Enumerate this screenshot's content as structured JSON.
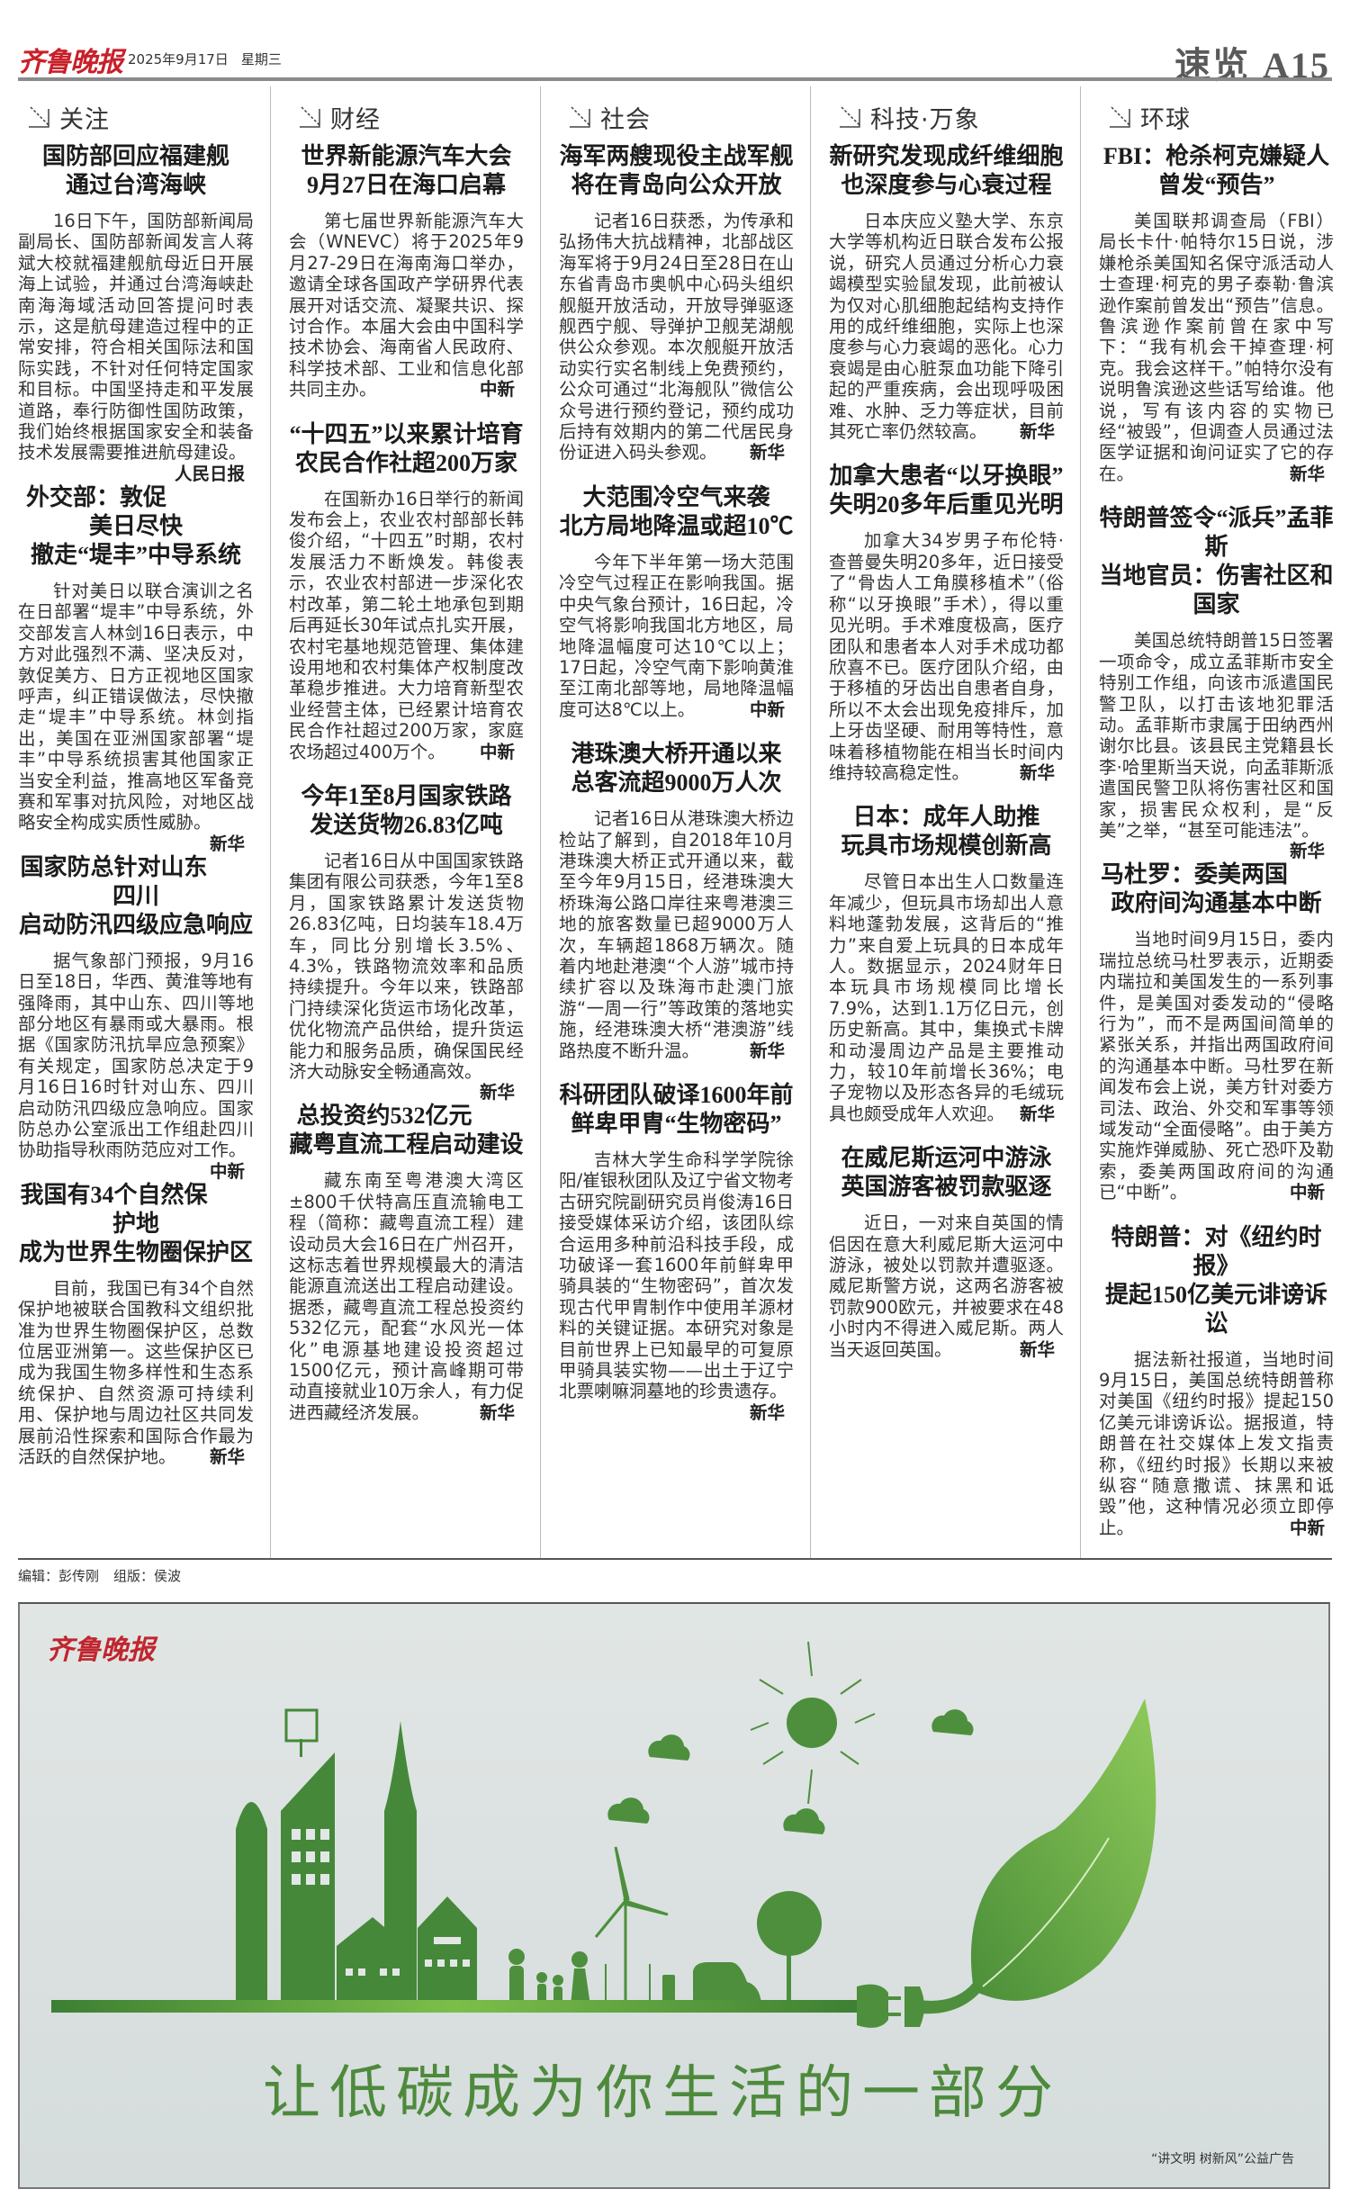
{
  "header": {
    "logo": "齐鲁晚报",
    "date": "2025年9月17日",
    "weekday": "星期三",
    "section": "速览",
    "page": "A15",
    "brand_color": "#c8202a"
  },
  "columns": [
    {
      "section": "关注",
      "articles": [
        {
          "title": [
            "国防部回应福建舰",
            "通过台湾海峡"
          ],
          "body": "16日下午，国防部新闻局副局长、国防部新闻发言人蒋斌大校就福建舰航母近日开展海上试验，并通过台湾海峡赴南海海域活动回答提问时表示，这是航母建造过程中的正常安排，符合相关国际法和国际实践，不针对任何特定国家和目标。中国坚持走和平发展道路，奉行防御性国防政策，我们始终根据国家安全和装备技术发展需要推进航母建设。",
          "source": "人民日报"
        },
        {
          "title": [
            "外交部：敦促美日尽快",
            "撤走“堤丰”中导系统"
          ],
          "body": "针对美日以联合演训之名在日部署“堤丰”中导系统，外交部发言人林剑16日表示，中方对此强烈不满、坚决反对，敦促美方、日方正视地区国家呼声，纠正错误做法，尽快撤走“堤丰”中导系统。林剑指出，美国在亚洲国家部署“堤丰”中导系统损害其他国家正当安全利益，推高地区军备竞赛和军事对抗风险，对地区战略安全构成实质性威胁。",
          "source": "新华"
        },
        {
          "title": [
            "国家防总针对山东四川",
            "启动防汛四级应急响应"
          ],
          "body": "据气象部门预报，9月16日至18日，华西、黄淮等地有强降雨，其中山东、四川等地部分地区有暴雨或大暴雨。根据《国家防汛抗旱应急预案》有关规定，国家防总决定于9月16日16时针对山东、四川启动防汛四级应急响应。国家防总办公室派出工作组赴四川协助指导秋雨防范应对工作。",
          "source": "中新"
        },
        {
          "title": [
            "我国有34个自然保护地",
            "成为世界生物圈保护区"
          ],
          "body": "目前，我国已有34个自然保护地被联合国教科文组织批准为世界生物圈保护区，总数位居亚洲第一。这些保护区已成为我国生物多样性和生态系统保护、自然资源可持续利用、保护地与周边社区共同发展前沿性探索和国际合作最为活跃的自然保护地。",
          "source": "新华"
        }
      ]
    },
    {
      "section": "财经",
      "articles": [
        {
          "title": [
            "世界新能源汽车大会",
            "9月27日在海口启幕"
          ],
          "body": "第七届世界新能源汽车大会（WNEVC）将于2025年9月27-29日在海南海口举办，邀请全球各国政产学研界代表展开对话交流、凝聚共识、探讨合作。本届大会由中国科学技术协会、海南省人民政府、科学技术部、工业和信息化部共同主办。",
          "source": "中新"
        },
        {
          "title": [
            "“十四五”以来累计培育",
            "农民合作社超200万家"
          ],
          "body": "在国新办16日举行的新闻发布会上，农业农村部部长韩俊介绍，“十四五”时期，农村发展活力不断焕发。韩俊表示，农业农村部进一步深化农村改革，第二轮土地承包到期后再延长30年试点扎实开展，农村宅基地规范管理、集体建设用地和农村集体产权制度改革稳步推进。大力培育新型农业经营主体，已经累计培育农民合作社超过200万家，家庭农场超过400万个。",
          "source": "中新"
        },
        {
          "title": [
            "今年1至8月国家铁路",
            "发送货物26.83亿吨"
          ],
          "body": "记者16日从中国国家铁路集团有限公司获悉，今年1至8月，国家铁路累计发送货物26.83亿吨，日均装车18.4万车，同比分别增长3.5%、4.3%，铁路物流效率和品质持续提升。今年以来，铁路部门持续深化货运市场化改革，优化物流产品供给，提升货运能力和服务品质，确保国民经济大动脉安全畅通高效。",
          "source": "新华"
        },
        {
          "title": [
            "总投资约532亿元",
            "藏粤直流工程启动建设"
          ],
          "body": "藏东南至粤港澳大湾区±800千伏特高压直流输电工程（简称：藏粤直流工程）建设动员大会16日在广州召开，这标志着世界规模最大的清洁能源直流送出工程启动建设。据悉，藏粤直流工程总投资约532亿元，配套“水风光一体化”电源基地建设投资超过1500亿元，预计高峰期可带动直接就业10万余人，有力促进西藏经济发展。",
          "source": "新华"
        }
      ]
    },
    {
      "section": "社会",
      "articles": [
        {
          "title": [
            "海军两艘现役主战军舰",
            "将在青岛向公众开放"
          ],
          "body": "记者16日获悉，为传承和弘扬伟大抗战精神，北部战区海军将于9月24日至28日在山东省青岛市奥帆中心码头组织舰艇开放活动，开放导弹驱逐舰西宁舰、导弹护卫舰芜湖舰供公众参观。本次舰艇开放活动实行实名制线上免费预约，公众可通过“北海舰队”微信公众号进行预约登记，预约成功后持有效期内的第二代居民身份证进入码头参观。",
          "source": "新华"
        },
        {
          "title": [
            "大范围冷空气来袭",
            "北方局地降温或超10℃"
          ],
          "body": "今年下半年第一场大范围冷空气过程正在影响我国。据中央气象台预计，16日起，冷空气将影响我国北方地区，局地降温幅度可达10℃以上；17日起，冷空气南下影响黄淮至江南北部等地，局地降温幅度可达8℃以上。",
          "source": "中新"
        },
        {
          "title": [
            "港珠澳大桥开通以来",
            "总客流超9000万人次"
          ],
          "body": "记者16日从港珠澳大桥边检站了解到，自2018年10月港珠澳大桥正式开通以来，截至今年9月15日，经港珠澳大桥珠海公路口岸往来粤港澳三地的旅客数量已超9000万人次，车辆超1868万辆次。随着内地赴港澳“个人游”城市持续扩容以及珠海市赴澳门旅游“一周一行”等政策的落地实施，经港珠澳大桥“港澳游”线路热度不断升温。",
          "source": "新华"
        },
        {
          "title": [
            "科研团队破译1600年前",
            "鲜卑甲胄“生物密码”"
          ],
          "body": "吉林大学生命科学学院徐阳/崔银秋团队及辽宁省文物考古研究院副研究员肖俊涛16日接受媒体采访介绍，该团队综合运用多种前沿科技手段，成功破译一套1600年前鲜卑甲骑具装的“生物密码”，首次发现古代甲胄制作中使用羊源材料的关键证据。本研究对象是目前世界上已知最早的可复原甲骑具装实物——出土于辽宁北票喇嘛洞墓地的珍贵遗存。",
          "source": "新华"
        }
      ]
    },
    {
      "section": "科技·万象",
      "articles": [
        {
          "title": [
            "新研究发现成纤维细胞",
            "也深度参与心衰过程"
          ],
          "body": "日本庆应义塾大学、东京大学等机构近日联合发布公报说，研究人员通过分析心力衰竭模型实验鼠发现，此前被认为仅对心肌细胞起结构支持作用的成纤维细胞，实际上也深度参与心力衰竭的恶化。心力衰竭是由心脏泵血功能下降引起的严重疾病，会出现呼吸困难、水肿、乏力等症状，目前其死亡率仍然较高。",
          "source": "新华"
        },
        {
          "title": [
            "加拿大患者“以牙换眼”",
            "失明20多年后重见光明"
          ],
          "body": "加拿大34岁男子布伦特·查普曼失明20多年，近日接受了“骨齿人工角膜移植术”（俗称“以牙换眼”手术），得以重见光明。手术难度极高，医疗团队和患者本人对手术成功都欣喜不已。医疗团队介绍，由于移植的牙齿出自患者自身，所以不太会出现免疫排斥，加上牙齿坚硬、耐用等特性，意味着移植物能在相当长时间内维持较高稳定性。",
          "source": "新华"
        },
        {
          "title": [
            "日本：成年人助推",
            "玩具市场规模创新高"
          ],
          "body": "尽管日本出生人口数量连年减少，但玩具市场却出人意料地蓬勃发展，这背后的“推力”来自爱上玩具的日本成年人。数据显示，2024财年日本玩具市场规模同比增长7.9%，达到1.1万亿日元，创历史新高。其中，集换式卡牌和动漫周边产品是主要推动力，较10年前增长36%；电子宠物以及形态各异的毛绒玩具也颇受成年人欢迎。",
          "source": "新华"
        },
        {
          "title": [
            "在威尼斯运河中游泳",
            "英国游客被罚款驱逐"
          ],
          "body": "近日，一对来自英国的情侣因在意大利威尼斯大运河中游泳，被处以罚款并遭驱逐。威尼斯警方说，这两名游客被罚款900欧元，并被要求在48小时内不得进入威尼斯。两人当天返回英国。",
          "source": "新华"
        }
      ]
    },
    {
      "section": "环球",
      "articles": [
        {
          "title": [
            "FBI：枪杀柯克嫌疑人",
            "曾发“预告”"
          ],
          "body": "美国联邦调查局（FBI）局长卡什·帕特尔15日说，涉嫌枪杀美国知名保守派活动人士查理·柯克的男子泰勒·鲁滨逊作案前曾发出“预告”信息。鲁滨逊作案前曾在家中写下：“我有机会干掉查理·柯克。我会这样干。”帕特尔没有说明鲁滨逊这些话写给谁。他说，写有该内容的实物已经“被毁”，但调查人员通过法医学证据和询问证实了它的存在。",
          "source": "新华"
        },
        {
          "title": [
            "特朗普签令“派兵”孟菲斯",
            "当地官员：伤害社区和国家"
          ],
          "body": "美国总统特朗普15日签署一项命令，成立孟菲斯市安全特别工作组，向该市派遣国民警卫队，以打击该地犯罪活动。孟菲斯市隶属于田纳西州谢尔比县。该县民主党籍县长李·哈里斯当天说，向孟菲斯派遣国民警卫队将伤害社区和国家，损害民众权利，是“反美”之举，“甚至可能违法”。",
          "source": "新华"
        },
        {
          "title": [
            "马杜罗：委美两国",
            "政府间沟通基本中断"
          ],
          "body": "当地时间9月15日，委内瑞拉总统马杜罗表示，近期委内瑞拉和美国发生的一系列事件，是美国对委发动的“侵略行为”，而不是两国间简单的紧张关系，并指出两国政府间的沟通基本中断。马杜罗在新闻发布会上说，美方针对委方司法、政治、外交和军事等领域发动“全面侵略”。由于美方实施炸弹威胁、死亡恐吓及勒索，委美两国政府间的沟通已“中断”。",
          "source": "中新"
        },
        {
          "title": [
            "特朗普：对《纽约时报》",
            "提起150亿美元诽谤诉讼"
          ],
          "body": "据法新社报道，当地时间9月15日，美国总统特朗普称对美国《纽约时报》提起150亿美元诽谤诉讼。据报道，特朗普在社交媒体上发文指责称，《纽约时报》长期以来被纵容“随意撒谎、抹黑和诋毁”他，这种情况必须立即停止。",
          "source": "中新"
        }
      ]
    }
  ],
  "credits": {
    "editor": "编辑：彭传刚",
    "layout": "组版：侯波"
  },
  "ad": {
    "logo": "齐鲁晚报",
    "slogan": "让低碳成为你生活的一部分",
    "caption": "“讲文明 树新风”公益广告",
    "accent_color": "#4d8a3c"
  }
}
